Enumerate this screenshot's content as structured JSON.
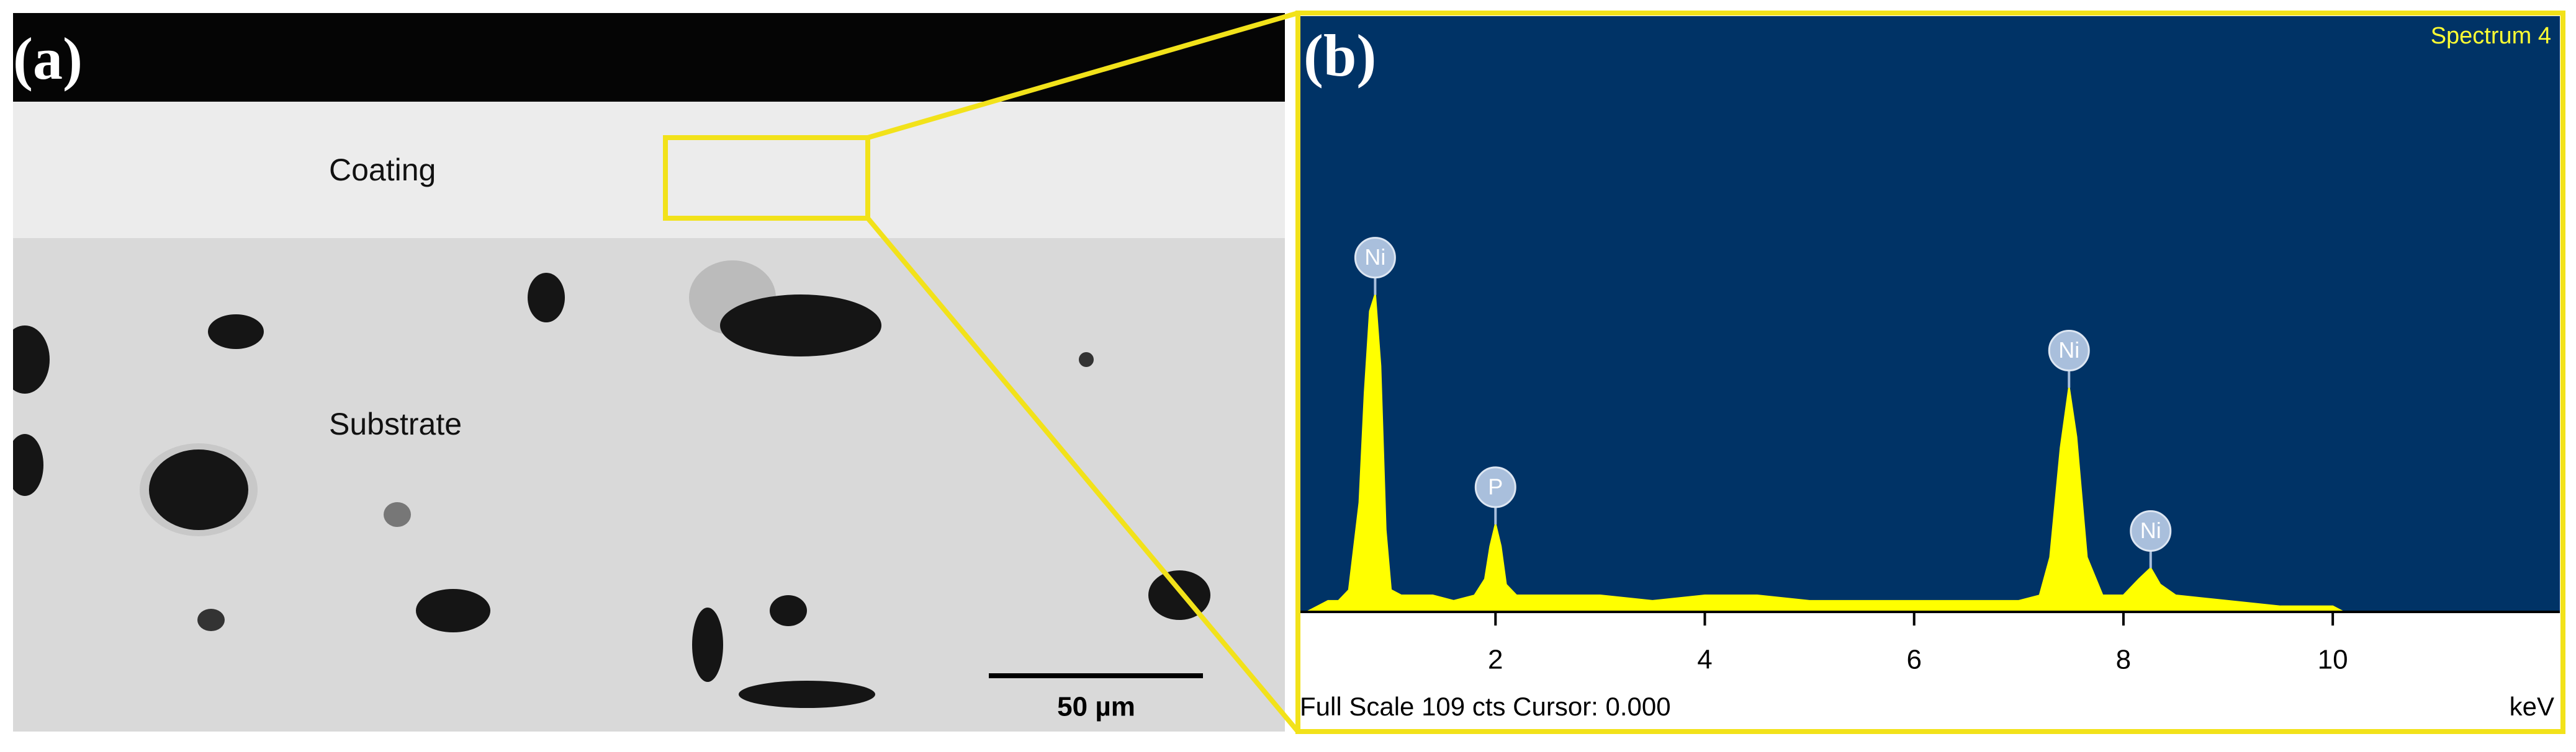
{
  "panel_a": {
    "label": "(a)",
    "coating": "Coating",
    "substrate": "Substrate",
    "scale_bar": "50 µm"
  },
  "chart_data": {
    "type": "spectrum",
    "label": "(b)",
    "title": "Spectrum 4",
    "status": "Full Scale 109 cts Cursor: 0.000",
    "xlabel": "keV",
    "color": "#ffff00",
    "x": [
      0.2,
      0.3,
      0.4,
      0.5,
      0.6,
      0.7,
      0.75,
      0.8,
      0.85,
      0.9,
      0.95,
      1.0,
      1.1,
      1.2,
      1.4,
      1.6,
      1.8,
      1.9,
      1.95,
      2.0,
      2.05,
      2.1,
      2.2,
      2.5,
      3.0,
      3.5,
      4.0,
      4.5,
      5.0,
      5.5,
      6.0,
      6.5,
      7.0,
      7.2,
      7.3,
      7.4,
      7.48,
      7.55,
      7.65,
      7.8,
      8.0,
      8.15,
      8.26,
      8.35,
      8.5,
      9.0,
      9.5,
      10.0,
      10.1
    ],
    "values": [
      0,
      1,
      2,
      2,
      4,
      20,
      40,
      55,
      58,
      45,
      15,
      4,
      3,
      3,
      3,
      2,
      3,
      6,
      12,
      16,
      12,
      5,
      3,
      3,
      3,
      2,
      3,
      3,
      2,
      2,
      2,
      2,
      2,
      3,
      10,
      30,
      41,
      32,
      10,
      3,
      3,
      6,
      8,
      5,
      3,
      2,
      1,
      1,
      0
    ],
    "peak_labels": [
      {
        "label": "Ni",
        "x": 0.85,
        "y": 58
      },
      {
        "label": "P",
        "x": 2.0,
        "y": 16
      },
      {
        "label": "Ni",
        "x": 7.48,
        "y": 41
      },
      {
        "label": "Ni",
        "x": 8.26,
        "y": 8
      }
    ],
    "xlim": [
      0.13,
      12.17
    ],
    "ylim": [
      0,
      109
    ],
    "xticks": [
      2,
      4,
      6,
      8,
      10
    ]
  }
}
